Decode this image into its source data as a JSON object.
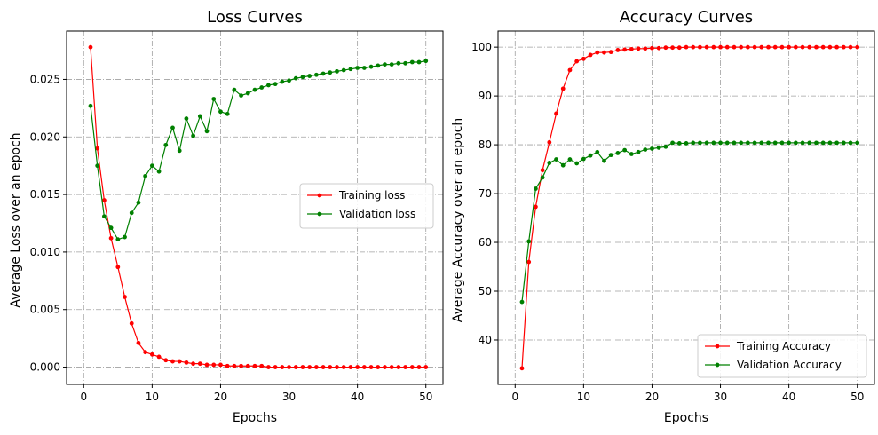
{
  "chart_data": [
    {
      "type": "line",
      "title": "Loss Curves",
      "xlabel": "Epochs",
      "ylabel": "Average Loss over an epoch",
      "xlim": [
        -2.5,
        52.5
      ],
      "ylim": [
        -0.0015,
        0.0292
      ],
      "xticks": [
        "0",
        "10",
        "20",
        "30",
        "40",
        "50"
      ],
      "yticks": [
        "0.000",
        "0.005",
        "0.010",
        "0.015",
        "0.020",
        "0.025"
      ],
      "grid": true,
      "legend_position": "center-right",
      "x": [
        1,
        2,
        3,
        4,
        5,
        6,
        7,
        8,
        9,
        10,
        11,
        12,
        13,
        14,
        15,
        16,
        17,
        18,
        19,
        20,
        21,
        22,
        23,
        24,
        25,
        26,
        27,
        28,
        29,
        30,
        31,
        32,
        33,
        34,
        35,
        36,
        37,
        38,
        39,
        40,
        41,
        42,
        43,
        44,
        45,
        46,
        47,
        48,
        49,
        50
      ],
      "series": [
        {
          "name": "Training loss",
          "color": "#ff0000",
          "values": [
            0.0278,
            0.019,
            0.0145,
            0.0112,
            0.0087,
            0.0061,
            0.0038,
            0.0021,
            0.0013,
            0.0011,
            0.0009,
            0.0006,
            0.0005,
            0.0005,
            0.0004,
            0.0003,
            0.0003,
            0.0002,
            0.0002,
            0.0002,
            0.0001,
            0.0001,
            0.0001,
            0.0001,
            0.0001,
            0.0001,
            0.0,
            0.0,
            0.0,
            0.0,
            0.0,
            0.0,
            0.0,
            0.0,
            0.0,
            0.0,
            0.0,
            0.0,
            0.0,
            0.0,
            0.0,
            0.0,
            0.0,
            0.0,
            0.0,
            0.0,
            0.0,
            0.0,
            0.0,
            0.0
          ]
        },
        {
          "name": "Validation loss",
          "color": "#008000",
          "values": [
            0.0227,
            0.0175,
            0.0131,
            0.0121,
            0.0111,
            0.0113,
            0.0134,
            0.0143,
            0.0166,
            0.0175,
            0.017,
            0.0193,
            0.0208,
            0.0188,
            0.0216,
            0.0201,
            0.0218,
            0.0205,
            0.0233,
            0.0222,
            0.022,
            0.0241,
            0.0236,
            0.0238,
            0.0241,
            0.0243,
            0.0245,
            0.0246,
            0.0248,
            0.0249,
            0.0251,
            0.0252,
            0.0253,
            0.0254,
            0.0255,
            0.0256,
            0.0257,
            0.0258,
            0.0259,
            0.026,
            0.026,
            0.0261,
            0.0262,
            0.0263,
            0.0263,
            0.0264,
            0.0264,
            0.0265,
            0.0265,
            0.0266
          ]
        }
      ]
    },
    {
      "type": "line",
      "title": "Accuracy Curves",
      "xlabel": "Epochs",
      "ylabel": "Average Accuracy over an epoch",
      "xlim": [
        -2.5,
        52.5
      ],
      "ylim": [
        30.9,
        103.3
      ],
      "xticks": [
        "0",
        "10",
        "20",
        "30",
        "40",
        "50"
      ],
      "yticks": [
        "40",
        "50",
        "60",
        "70",
        "80",
        "90",
        "100"
      ],
      "grid": true,
      "legend_position": "lower-right",
      "x": [
        1,
        2,
        3,
        4,
        5,
        6,
        7,
        8,
        9,
        10,
        11,
        12,
        13,
        14,
        15,
        16,
        17,
        18,
        19,
        20,
        21,
        22,
        23,
        24,
        25,
        26,
        27,
        28,
        29,
        30,
        31,
        32,
        33,
        34,
        35,
        36,
        37,
        38,
        39,
        40,
        41,
        42,
        43,
        44,
        45,
        46,
        47,
        48,
        49,
        50
      ],
      "series": [
        {
          "name": "Training Accuracy",
          "color": "#ff0000",
          "values": [
            34.2,
            56.0,
            67.3,
            74.8,
            80.5,
            86.4,
            91.5,
            95.3,
            97.1,
            97.6,
            98.4,
            98.9,
            98.9,
            99.0,
            99.4,
            99.5,
            99.6,
            99.7,
            99.7,
            99.8,
            99.8,
            99.9,
            99.9,
            99.9,
            100,
            100,
            100,
            100,
            100,
            100,
            100,
            100,
            100,
            100,
            100,
            100,
            100,
            100,
            100,
            100,
            100,
            100,
            100,
            100,
            100,
            100,
            100,
            100,
            100,
            100
          ]
        },
        {
          "name": "Validation Accuracy",
          "color": "#008000",
          "values": [
            47.8,
            60.2,
            71.0,
            73.3,
            76.3,
            77.0,
            75.8,
            77.0,
            76.2,
            77.1,
            77.8,
            78.5,
            76.7,
            77.9,
            78.3,
            78.9,
            78.1,
            78.5,
            79.0,
            79.2,
            79.4,
            79.6,
            80.4,
            80.3,
            80.3,
            80.4,
            80.4,
            80.4,
            80.4,
            80.4,
            80.4,
            80.4,
            80.4,
            80.4,
            80.4,
            80.4,
            80.4,
            80.4,
            80.4,
            80.4,
            80.4,
            80.4,
            80.4,
            80.4,
            80.4,
            80.4,
            80.4,
            80.4,
            80.4,
            80.4
          ]
        }
      ]
    }
  ]
}
